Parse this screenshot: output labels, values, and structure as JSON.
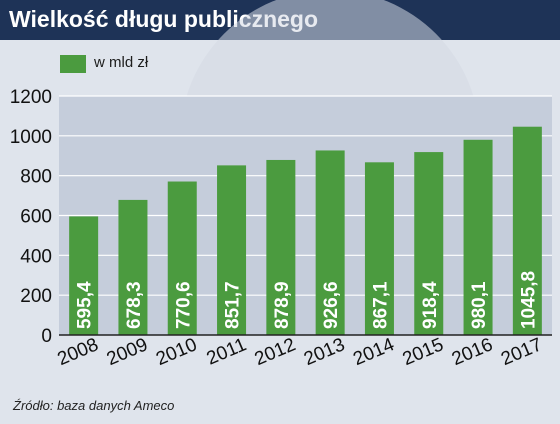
{
  "title": "Wielkość długu publicznego",
  "legend": {
    "label": "w mld zł"
  },
  "source": "Źródło: baza danych Ameco",
  "colors": {
    "header": "#1e3357",
    "background": "#dfe4ec",
    "plot": "#c5cddb",
    "bar": "#4b9b3f",
    "bar_label": "#ffffff",
    "grid": "#ffffff"
  },
  "chart_data": {
    "type": "bar",
    "categories": [
      "2008",
      "2009",
      "2010",
      "2011",
      "2012",
      "2013",
      "2014",
      "2015",
      "2016",
      "2017"
    ],
    "series": [
      {
        "name": "w mld zł",
        "values": [
          595.4,
          678.3,
          770.6,
          851.7,
          878.9,
          926.6,
          867.1,
          918.4,
          980.1,
          1045.8
        ]
      }
    ],
    "value_labels": [
      "595,4",
      "678,3",
      "770,6",
      "851,7",
      "878,9",
      "926,6",
      "867,1",
      "918,4",
      "980,1",
      "1045,8"
    ],
    "ylim": [
      0,
      1200
    ],
    "yticks": [
      0,
      200,
      400,
      600,
      800,
      1000,
      1200
    ],
    "grid": true,
    "legend_position": "top-left"
  }
}
